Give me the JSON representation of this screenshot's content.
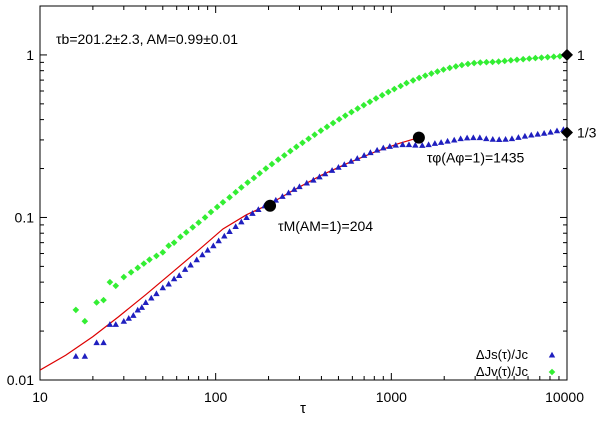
{
  "chart_data": {
    "type": "scatter",
    "xscale": "log",
    "yscale": "log",
    "xlim": [
      10,
      10000
    ],
    "ylim": [
      0.01,
      2
    ],
    "xlabel": "τ",
    "ylabel": "",
    "xticks": [
      {
        "value": 10,
        "label": "10"
      },
      {
        "value": 100,
        "label": "100"
      },
      {
        "value": 1000,
        "label": "1000"
      },
      {
        "value": 10000,
        "label": "10000"
      }
    ],
    "yticks": [
      {
        "value": 0.01,
        "label": "0.01"
      },
      {
        "value": 0.1,
        "label": "0.1"
      },
      {
        "value": 1,
        "label": "1"
      }
    ],
    "annotation_top": "τb=201.2±2.3, AM=0.99±0.01",
    "series": [
      {
        "name": "ΔJs(τ)/Jc",
        "marker": "triangle",
        "color": "#1f1fbf",
        "x": [
          16,
          18,
          21,
          23,
          25,
          27,
          30,
          32,
          34,
          36,
          38,
          40,
          43,
          46,
          50,
          54,
          58,
          62,
          67,
          72,
          78,
          84,
          90,
          97,
          104,
          112,
          120,
          130,
          140,
          150,
          162,
          175,
          190,
          205,
          220,
          240,
          260,
          280,
          300,
          330,
          360,
          390,
          420,
          460,
          500,
          540,
          590,
          640,
          700,
          760,
          830,
          900,
          980,
          1060,
          1160,
          1260,
          1370,
          1500,
          1630,
          1770,
          1920,
          2090,
          2280,
          2480,
          2700,
          2930,
          3190,
          3470,
          3780,
          4110,
          4470,
          4860,
          5290,
          5760,
          6260,
          6810,
          7410,
          8060,
          8770,
          9540
        ],
        "y": [
          0.014,
          0.014,
          0.017,
          0.017,
          0.022,
          0.022,
          0.023,
          0.024,
          0.025,
          0.027,
          0.028,
          0.03,
          0.032,
          0.034,
          0.037,
          0.039,
          0.042,
          0.044,
          0.048,
          0.051,
          0.055,
          0.059,
          0.063,
          0.067,
          0.072,
          0.077,
          0.082,
          0.088,
          0.094,
          0.1,
          0.106,
          0.112,
          0.118,
          0.123,
          0.128,
          0.135,
          0.142,
          0.149,
          0.155,
          0.163,
          0.17,
          0.178,
          0.186,
          0.195,
          0.204,
          0.212,
          0.222,
          0.231,
          0.241,
          0.251,
          0.26,
          0.268,
          0.274,
          0.279,
          0.281,
          0.281,
          0.279,
          0.278,
          0.281,
          0.286,
          0.29,
          0.295,
          0.3,
          0.306,
          0.309,
          0.31,
          0.31,
          0.306,
          0.303,
          0.302,
          0.303,
          0.306,
          0.311,
          0.317,
          0.322,
          0.326,
          0.33,
          0.335,
          0.342,
          0.348
        ]
      },
      {
        "name": "ΔJv(τ)/Jc",
        "marker": "diamond",
        "color": "#33ee33",
        "x": [
          16,
          18,
          21,
          23,
          25,
          27,
          30,
          33,
          36,
          39,
          42,
          46,
          50,
          54,
          58,
          63,
          68,
          74,
          80,
          87,
          94,
          102,
          110,
          120,
          130,
          140,
          152,
          165,
          178,
          193,
          209,
          227,
          246,
          266,
          288,
          312,
          338,
          366,
          397,
          430,
          466,
          505,
          547,
          593,
          643,
          697,
          755,
          818,
          887,
          961,
          1040,
          1130,
          1220,
          1330,
          1440,
          1560,
          1690,
          1830,
          1980,
          2150,
          2330,
          2520,
          2730,
          2960,
          3210,
          3480,
          3770,
          4080,
          4420,
          4790,
          5190,
          5630,
          6100,
          6610,
          7160,
          7760,
          8410,
          9110,
          9870
        ],
        "y": [
          0.027,
          0.023,
          0.03,
          0.031,
          0.04,
          0.038,
          0.043,
          0.046,
          0.049,
          0.052,
          0.055,
          0.058,
          0.061,
          0.067,
          0.07,
          0.076,
          0.081,
          0.087,
          0.093,
          0.1,
          0.108,
          0.116,
          0.124,
          0.133,
          0.143,
          0.153,
          0.164,
          0.175,
          0.187,
          0.2,
          0.213,
          0.227,
          0.241,
          0.256,
          0.272,
          0.288,
          0.305,
          0.323,
          0.342,
          0.361,
          0.381,
          0.402,
          0.423,
          0.445,
          0.468,
          0.491,
          0.515,
          0.54,
          0.565,
          0.591,
          0.617,
          0.644,
          0.671,
          0.697,
          0.722,
          0.746,
          0.768,
          0.79,
          0.812,
          0.832,
          0.85,
          0.866,
          0.88,
          0.891,
          0.898,
          0.902,
          0.905,
          0.91,
          0.918,
          0.926,
          0.934,
          0.941,
          0.949,
          0.956,
          0.962,
          0.969,
          0.975,
          0.981,
          0.987
        ]
      }
    ],
    "fit_line": {
      "color": "#dd0000",
      "x": [
        10,
        14,
        20,
        28,
        40,
        56,
        80,
        110,
        150,
        200,
        280,
        400,
        560,
        800,
        1100,
        1435
      ],
      "y": [
        0.0115,
        0.0142,
        0.0185,
        0.0245,
        0.0335,
        0.0455,
        0.063,
        0.085,
        0.104,
        0.12,
        0.148,
        0.182,
        0.215,
        0.252,
        0.285,
        0.31
      ]
    },
    "big_points": [
      {
        "x": 204,
        "y": 0.118,
        "label": "τM(AM=1)=204"
      },
      {
        "x": 1435,
        "y": 0.31,
        "label": "τφ(Aφ=1)=1435"
      }
    ],
    "edge_markers": [
      {
        "x": 10000,
        "y": 1,
        "label": "1"
      },
      {
        "x": 10000,
        "y": 0.333,
        "label": "1/3"
      }
    ]
  }
}
